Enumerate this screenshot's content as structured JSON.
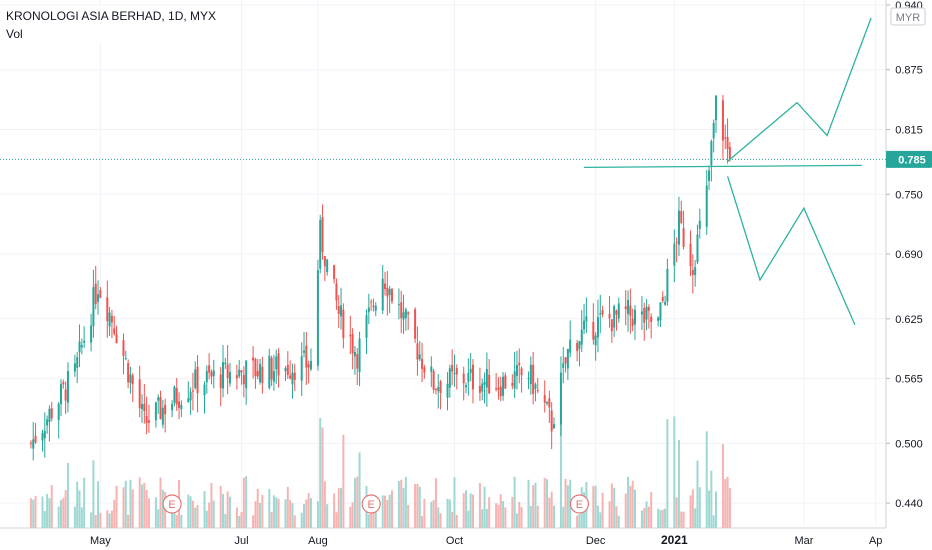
{
  "header": {
    "title": "KRONOLOGI ASIA BERHAD, 1D, MYX",
    "subtitle": "Vol",
    "currency": "MYR"
  },
  "colors": {
    "up": "#26a69a",
    "down": "#ef5350",
    "vol_up": "#9fd8d2",
    "vol_down": "#f6b3b1",
    "drawing": "#2db3a0",
    "last_price_bg": "#26a69a",
    "earnings": "#e57373"
  },
  "chart_data": {
    "type": "candlestick",
    "title": "KRONOLOGI ASIA BERHAD, 1D, MYX",
    "ylabel": "MYR",
    "ylim": [
      0.415,
      0.945
    ],
    "y_ticks": [
      "0.940",
      "0.875",
      "0.815",
      "0.750",
      "0.690",
      "0.625",
      "0.565",
      "0.500",
      "0.440"
    ],
    "x_ticks": [
      "May",
      "Jul",
      "Aug",
      "Oct",
      "Dec",
      "2021",
      "Mar",
      "Ap"
    ],
    "x_tick_dates": [
      "2020-05-01",
      "2020-07-01",
      "2020-08-03",
      "2020-10-01",
      "2020-12-01",
      "2021-01-04",
      "2021-03-01",
      "2021-04-01"
    ],
    "last_price": "0.785",
    "earnings_markers": [
      "E",
      "E",
      "E"
    ],
    "earnings_dates": [
      "2020-06-01",
      "2020-08-26",
      "2020-11-24"
    ],
    "anchors": [
      {
        "date": "2020-04-01",
        "close": 0.5
      },
      {
        "date": "2020-04-20",
        "close": 0.57
      },
      {
        "date": "2020-04-30",
        "close": 0.66
      },
      {
        "date": "2020-05-07",
        "close": 0.62
      },
      {
        "date": "2020-05-20",
        "close": 0.52
      },
      {
        "date": "2020-06-10",
        "close": 0.56
      },
      {
        "date": "2020-06-25",
        "close": 0.57
      },
      {
        "date": "2020-07-15",
        "close": 0.575
      },
      {
        "date": "2020-07-31",
        "close": 0.58
      },
      {
        "date": "2020-08-04",
        "close": 0.71
      },
      {
        "date": "2020-08-12",
        "close": 0.63
      },
      {
        "date": "2020-08-20",
        "close": 0.59
      },
      {
        "date": "2020-08-31",
        "close": 0.67
      },
      {
        "date": "2020-09-10",
        "close": 0.62
      },
      {
        "date": "2020-09-22",
        "close": 0.56
      },
      {
        "date": "2020-10-05",
        "close": 0.565
      },
      {
        "date": "2020-10-20",
        "close": 0.56
      },
      {
        "date": "2020-11-02",
        "close": 0.57
      },
      {
        "date": "2020-11-12",
        "close": 0.52
      },
      {
        "date": "2020-11-20",
        "close": 0.6
      },
      {
        "date": "2020-12-01",
        "close": 0.62
      },
      {
        "date": "2020-12-15",
        "close": 0.63
      },
      {
        "date": "2020-12-28",
        "close": 0.62
      },
      {
        "date": "2021-01-06",
        "close": 0.72
      },
      {
        "date": "2021-01-12",
        "close": 0.68
      },
      {
        "date": "2021-01-18",
        "close": 0.75
      },
      {
        "date": "2021-01-22",
        "close": 0.84
      },
      {
        "date": "2021-01-28",
        "close": 0.785
      }
    ],
    "drawing_lines": [
      {
        "name": "support-line",
        "points": [
          {
            "date": "2020-11-26",
            "y": 0.777
          },
          {
            "date": "2021-03-26",
            "y": 0.779
          }
        ]
      },
      {
        "name": "bull-projection",
        "points": [
          {
            "date": "2021-01-27",
            "y": 0.783
          },
          {
            "date": "2021-02-26",
            "y": 0.842
          },
          {
            "date": "2021-03-11",
            "y": 0.809
          },
          {
            "date": "2021-03-30",
            "y": 0.927
          }
        ]
      },
      {
        "name": "bear-projection",
        "points": [
          {
            "date": "2021-01-27",
            "y": 0.768
          },
          {
            "date": "2021-02-10",
            "y": 0.664
          },
          {
            "date": "2021-03-01",
            "y": 0.736
          },
          {
            "date": "2021-03-23",
            "y": 0.619
          }
        ]
      }
    ]
  }
}
